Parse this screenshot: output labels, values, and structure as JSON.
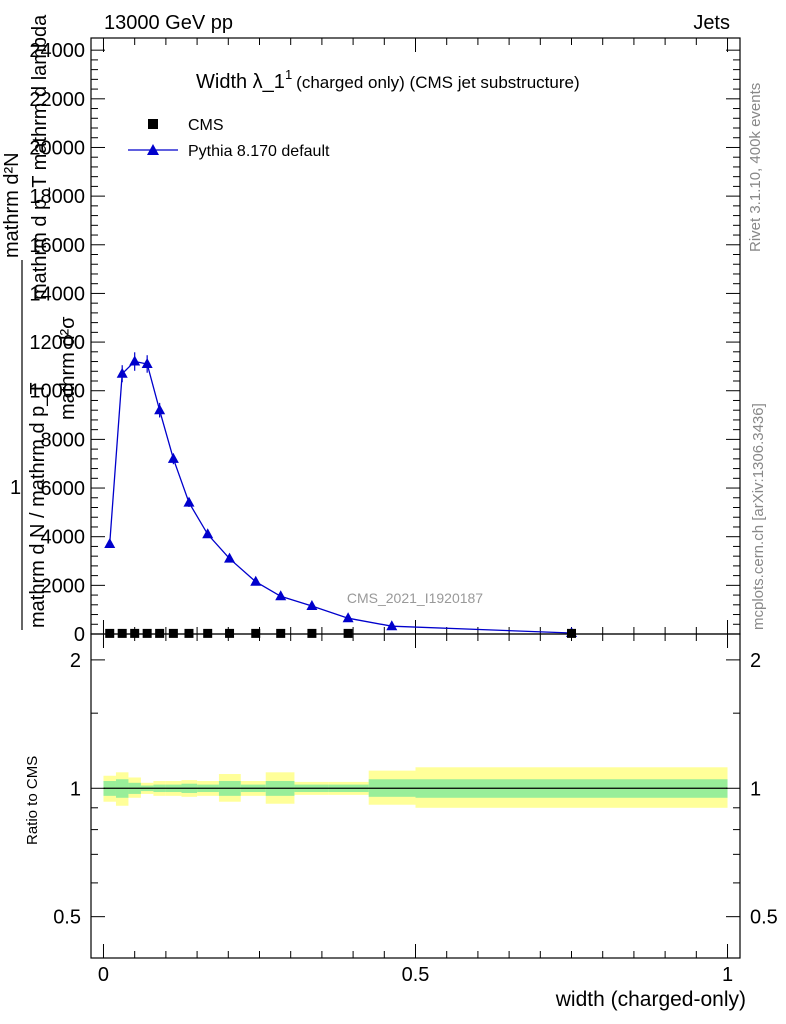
{
  "header": {
    "left": "13000 GeV pp",
    "right": "Jets",
    "title_main": "Width λ_1",
    "title_sup": "1",
    "title_sub": "(charged only) (CMS jet substructure)",
    "side_rivet": "Rivet 3.1.10,  400k events",
    "side_mcplots": "mcplots.cern.ch [arXiv:1306.3436]",
    "watermark": "CMS_2021_I1920187"
  },
  "axes": {
    "ylabel_top": "mathrm d²N",
    "ylabel_mid1": "mathrm d p_T mathrm d lambda",
    "ylabel_mid2": "mathrm d N / mathrm d p_T",
    "ylabel_bot": "mathrm d²σ",
    "ylabel_one": "1",
    "ratio_ylabel": "Ratio to CMS",
    "xlabel": "width (charged-only)"
  },
  "legend": {
    "cms_label": "CMS",
    "mc_label": "Pythia 8.170 default"
  },
  "colors": {
    "mc": "#0000cc",
    "data": "#000000",
    "band_outer": "#ffff99",
    "band_inner": "#99ee99",
    "watermark": "#999999"
  },
  "chart_data": {
    "type": "line",
    "main": {
      "ylim": [
        0,
        24500
      ],
      "xlim": [
        -0.02,
        1.02
      ],
      "yticks": [
        0,
        2000,
        4000,
        6000,
        8000,
        10000,
        12000,
        14000,
        16000,
        18000,
        20000,
        22000,
        24000
      ],
      "ytick_labels": [
        "0",
        "2000",
        "4000",
        "6000",
        "8000",
        "10000",
        "12000",
        "14000",
        "16000",
        "18000",
        "20000",
        "22000",
        "24000"
      ],
      "series": [
        {
          "name": "Pythia 8.170 default",
          "x": [
            0.01,
            0.03,
            0.05,
            0.07,
            0.09,
            0.112,
            0.137,
            0.167,
            0.202,
            0.244,
            0.284,
            0.334,
            0.392,
            0.462,
            0.75
          ],
          "y": [
            3700,
            10700,
            11200,
            11100,
            9200,
            7200,
            5400,
            4100,
            3100,
            2150,
            1550,
            1150,
            650,
            320,
            40
          ],
          "err": [
            150,
            350,
            380,
            360,
            300,
            220,
            180,
            150,
            120,
            90,
            70,
            60,
            40,
            30,
            10
          ]
        },
        {
          "name": "CMS",
          "x": [
            0.01,
            0.03,
            0.05,
            0.07,
            0.09,
            0.112,
            0.137,
            0.167,
            0.202,
            0.244,
            0.284,
            0.334,
            0.392,
            0.75
          ],
          "y": [
            25,
            25,
            25,
            25,
            25,
            25,
            25,
            25,
            25,
            25,
            25,
            25,
            25,
            25
          ]
        }
      ]
    },
    "ratio": {
      "ylim_log": [
        0.4,
        2.3
      ],
      "ytick_labels": [
        "0.5",
        "1",
        "2"
      ],
      "yticks": [
        0.5,
        1,
        2
      ],
      "xticks": [
        0,
        0.5,
        1
      ],
      "xtick_labels": [
        "0",
        "0.5",
        "1"
      ],
      "bands": [
        {
          "x0": 0.0,
          "x1": 0.02,
          "y_lo": 0.93,
          "y_hi": 1.07,
          "i_lo": 0.96,
          "i_hi": 1.04
        },
        {
          "x0": 0.02,
          "x1": 0.04,
          "y_lo": 0.91,
          "y_hi": 1.09,
          "i_lo": 0.95,
          "i_hi": 1.05
        },
        {
          "x0": 0.04,
          "x1": 0.06,
          "y_lo": 0.95,
          "y_hi": 1.06,
          "i_lo": 0.97,
          "i_hi": 1.03
        },
        {
          "x0": 0.06,
          "x1": 0.08,
          "y_lo": 0.97,
          "y_hi": 1.03,
          "i_lo": 0.985,
          "i_hi": 1.015
        },
        {
          "x0": 0.08,
          "x1": 0.1,
          "y_lo": 0.96,
          "y_hi": 1.04,
          "i_lo": 0.98,
          "i_hi": 1.02
        },
        {
          "x0": 0.1,
          "x1": 0.125,
          "y_lo": 0.96,
          "y_hi": 1.04,
          "i_lo": 0.98,
          "i_hi": 1.02
        },
        {
          "x0": 0.125,
          "x1": 0.15,
          "y_lo": 0.955,
          "y_hi": 1.045,
          "i_lo": 0.975,
          "i_hi": 1.025
        },
        {
          "x0": 0.15,
          "x1": 0.185,
          "y_lo": 0.96,
          "y_hi": 1.04,
          "i_lo": 0.98,
          "i_hi": 1.02
        },
        {
          "x0": 0.185,
          "x1": 0.22,
          "y_lo": 0.93,
          "y_hi": 1.08,
          "i_lo": 0.96,
          "i_hi": 1.04
        },
        {
          "x0": 0.22,
          "x1": 0.26,
          "y_lo": 0.96,
          "y_hi": 1.04,
          "i_lo": 0.98,
          "i_hi": 1.02
        },
        {
          "x0": 0.26,
          "x1": 0.306,
          "y_lo": 0.92,
          "y_hi": 1.09,
          "i_lo": 0.96,
          "i_hi": 1.04
        },
        {
          "x0": 0.306,
          "x1": 0.36,
          "y_lo": 0.965,
          "y_hi": 1.035,
          "i_lo": 0.98,
          "i_hi": 1.02
        },
        {
          "x0": 0.36,
          "x1": 0.425,
          "y_lo": 0.965,
          "y_hi": 1.035,
          "i_lo": 0.98,
          "i_hi": 1.02
        },
        {
          "x0": 0.425,
          "x1": 0.5,
          "y_lo": 0.915,
          "y_hi": 1.1,
          "i_lo": 0.955,
          "i_hi": 1.05
        },
        {
          "x0": 0.5,
          "x1": 1.0,
          "y_lo": 0.9,
          "y_hi": 1.12,
          "i_lo": 0.95,
          "i_hi": 1.05
        }
      ]
    }
  }
}
